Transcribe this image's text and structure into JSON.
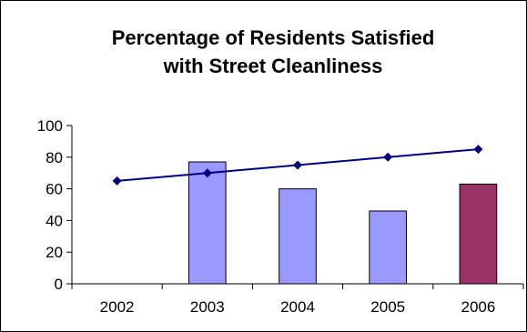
{
  "chart_data": {
    "type": "bar",
    "title_lines": [
      "Percentage of Residents Satisfied",
      "with Street Cleanliness"
    ],
    "categories": [
      "2002",
      "2003",
      "2004",
      "2005",
      "2006"
    ],
    "series": [
      {
        "type": "bar",
        "values": [
          null,
          77,
          60,
          46,
          63
        ],
        "colors": [
          "#9999ff",
          "#9999ff",
          "#9999ff",
          "#9999ff",
          "#993366"
        ]
      },
      {
        "type": "line",
        "values": [
          65,
          70,
          75,
          80,
          85
        ],
        "color": "#000080",
        "marker": "diamond"
      }
    ],
    "ylim": [
      0,
      100
    ],
    "yticks": [
      0,
      20,
      40,
      60,
      80,
      100
    ],
    "grid": false,
    "legend": "none",
    "axis_color": "#000000",
    "bar_outline_color": "#000000",
    "background": "#ffffff"
  }
}
